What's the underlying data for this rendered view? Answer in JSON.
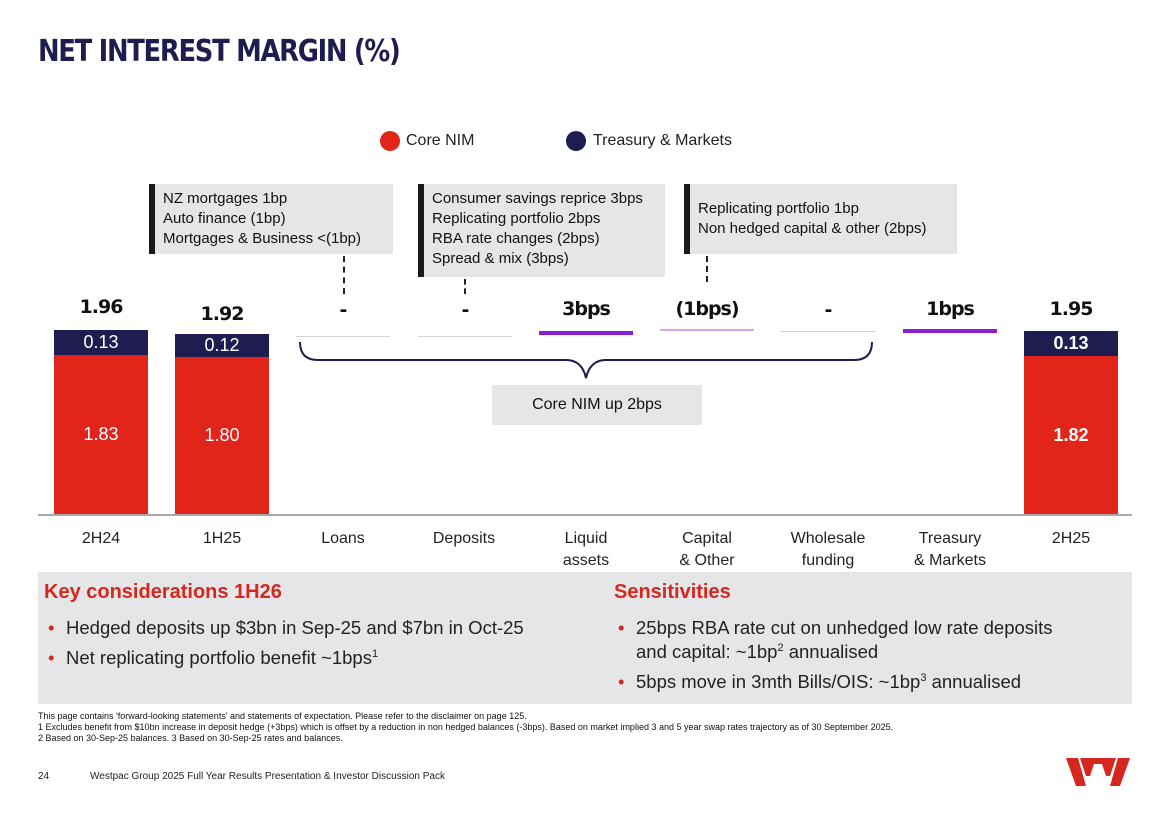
{
  "title": "NET INTEREST MARGIN (%)",
  "legend": [
    {
      "label": "Core NIM",
      "color": "#e1251b"
    },
    {
      "label": "Treasury & Markets",
      "color": "#1f1c4f"
    }
  ],
  "callouts": {
    "loans": [
      "NZ mortgages 1bp",
      "Auto finance (1bp)",
      "Mortgages & Business <(1bp)"
    ],
    "deposits": [
      "Consumer savings reprice 3bps",
      "Replicating portfolio 2bps",
      "RBA rate changes (2bps)",
      "Spread & mix (3bps)"
    ],
    "capital": [
      "Replicating portfolio 1bp",
      "Non hedged capital & other (2bps)"
    ]
  },
  "core_nim_note": "Core NIM up 2bps",
  "chart_data": {
    "type": "bar",
    "subtype": "waterfall",
    "categories": [
      "2H24",
      "1H25",
      "Loans",
      "Deposits",
      "Liquid assets",
      "Capital & Other",
      "Wholesale funding",
      "Treasury & Markets",
      "2H25"
    ],
    "category_labels": [
      [
        "2H24"
      ],
      [
        "1H25"
      ],
      [
        "Loans"
      ],
      [
        "Deposits"
      ],
      [
        "Liquid",
        "assets"
      ],
      [
        "Capital",
        "& Other"
      ],
      [
        "Wholesale",
        "funding"
      ],
      [
        "Treasury",
        "& Markets"
      ],
      [
        "2H25"
      ]
    ],
    "totals": {
      "2H24": {
        "total": "1.96",
        "core": 1.83,
        "core_label": "1.83",
        "tm": 0.13,
        "tm_label": "0.13"
      },
      "1H25": {
        "total": "1.92",
        "core": 1.8,
        "core_label": "1.80",
        "tm": 0.12,
        "tm_label": "0.12"
      },
      "2H25": {
        "total": "1.95",
        "core": 1.82,
        "core_label": "1.82",
        "tm": 0.13,
        "tm_label": "0.13"
      }
    },
    "steps": [
      {
        "category": "Loans",
        "value_bps": 0,
        "label": "-"
      },
      {
        "category": "Deposits",
        "value_bps": 0,
        "label": "-"
      },
      {
        "category": "Liquid assets",
        "value_bps": 3,
        "label": "3bps"
      },
      {
        "category": "Capital & Other",
        "value_bps": -1,
        "label": "(1bps)"
      },
      {
        "category": "Wholesale funding",
        "value_bps": 0,
        "label": "-"
      },
      {
        "category": "Treasury & Markets",
        "value_bps": 1,
        "label": "1bps"
      }
    ],
    "series": [
      {
        "name": "Core NIM",
        "color": "#e1251b"
      },
      {
        "name": "Treasury & Markets",
        "color": "#1f1c4f"
      }
    ],
    "step_colors": {
      "up": "#8b1fd6",
      "down": "#d9a5ef",
      "flat": "#d4d4d8"
    }
  },
  "key_considerations": {
    "heading": "Key considerations 1H26",
    "items": [
      {
        "text": "Hedged deposits up $3bn in Sep-25 and $7bn in Oct-25",
        "sup": ""
      },
      {
        "text": "Net replicating portfolio benefit  ~1bps",
        "sup": "1"
      }
    ]
  },
  "sensitivities": {
    "heading": "Sensitivities",
    "item1_a": "25bps RBA rate cut on unhedged low rate deposits",
    "item1_b": "and capital: ~1bp",
    "item1_sup": "2",
    "item1_c": " annualised",
    "item2_a": "5bps move in 3mth Bills/OIS: ~1bp",
    "item2_sup": "3",
    "item2_c": " annualised"
  },
  "footnotes": [
    "This page contains 'forward-looking statements' and statements of expectation. Please refer to the disclaimer on page 125.",
    "1 Excludes benefit from $10bn increase in deposit hedge (+3bps) which is offset by a reduction in non hedged balances (-3bps). Based on market implied 3 and 5 year swap rates trajectory as of 30 September 2025.",
    "2 Based on 30-Sep-25 balances. 3 Based on 30-Sep-25 rates and balances."
  ],
  "page_number": "24",
  "document_title": "Westpac Group 2025 Full Year Results Presentation & Investor Discussion Pack"
}
